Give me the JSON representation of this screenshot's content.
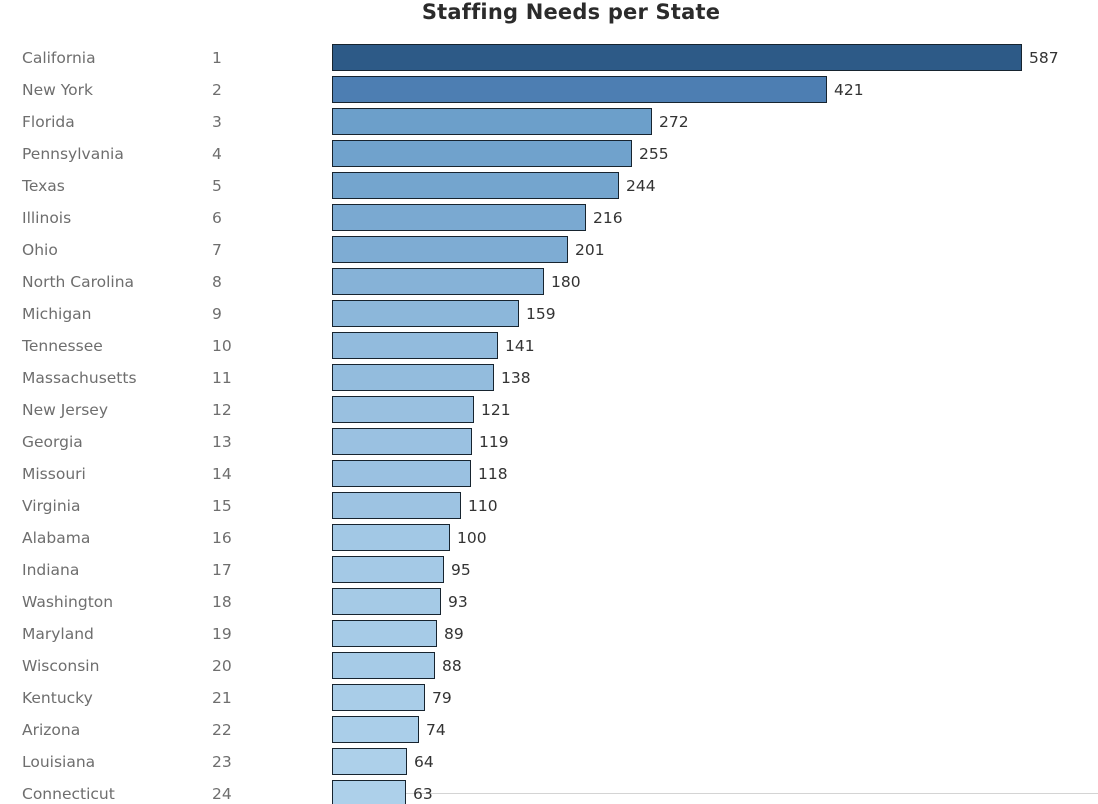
{
  "chart": {
    "title_color": "#2b2b2b",
    "label_color": "#6e6e6e",
    "value_color": "#333333",
    "bar_border_color": "#17242f",
    "bottom_axis_line_color": "#d4d4d4",
    "background_color": "#ffffff"
  },
  "chart_data": {
    "type": "bar",
    "orientation": "horizontal",
    "title": "Staffing Needs per State",
    "sort": "descending",
    "legend": "none",
    "grid": "off",
    "xlim": [
      0,
      600
    ],
    "categories": [
      "California",
      "New York",
      "Florida",
      "Pennsylvania",
      "Texas",
      "Illinois",
      "Ohio",
      "North Carolina",
      "Michigan",
      "Tennessee",
      "Massachusetts",
      "New Jersey",
      "Georgia",
      "Missouri",
      "Virginia",
      "Alabama",
      "Indiana",
      "Washington",
      "Maryland",
      "Wisconsin",
      "Kentucky",
      "Arizona",
      "Louisiana",
      "Connecticut"
    ],
    "ranks": [
      1,
      2,
      3,
      4,
      5,
      6,
      7,
      8,
      9,
      10,
      11,
      12,
      13,
      14,
      15,
      16,
      17,
      18,
      19,
      20,
      21,
      22,
      23,
      24
    ],
    "values": [
      587,
      421,
      272,
      255,
      244,
      216,
      201,
      180,
      159,
      141,
      138,
      121,
      119,
      118,
      110,
      100,
      95,
      93,
      89,
      88,
      79,
      74,
      64,
      63
    ],
    "bar_colors": [
      "#2d5a87",
      "#4d7eb2",
      "#6c9fca",
      "#70a2cc",
      "#74a5ce",
      "#7aa9d1",
      "#7eacd3",
      "#86b2d7",
      "#8cb7da",
      "#92bbdd",
      "#93bcdd",
      "#99c0e0",
      "#9ac1e1",
      "#9ac1e1",
      "#9dc3e2",
      "#a2c8e5",
      "#a4c9e6",
      "#a5cae6",
      "#a6cbe7",
      "#a6cbe7",
      "#a9cde8",
      "#aacee9",
      "#add0ea",
      "#add0ea"
    ]
  }
}
